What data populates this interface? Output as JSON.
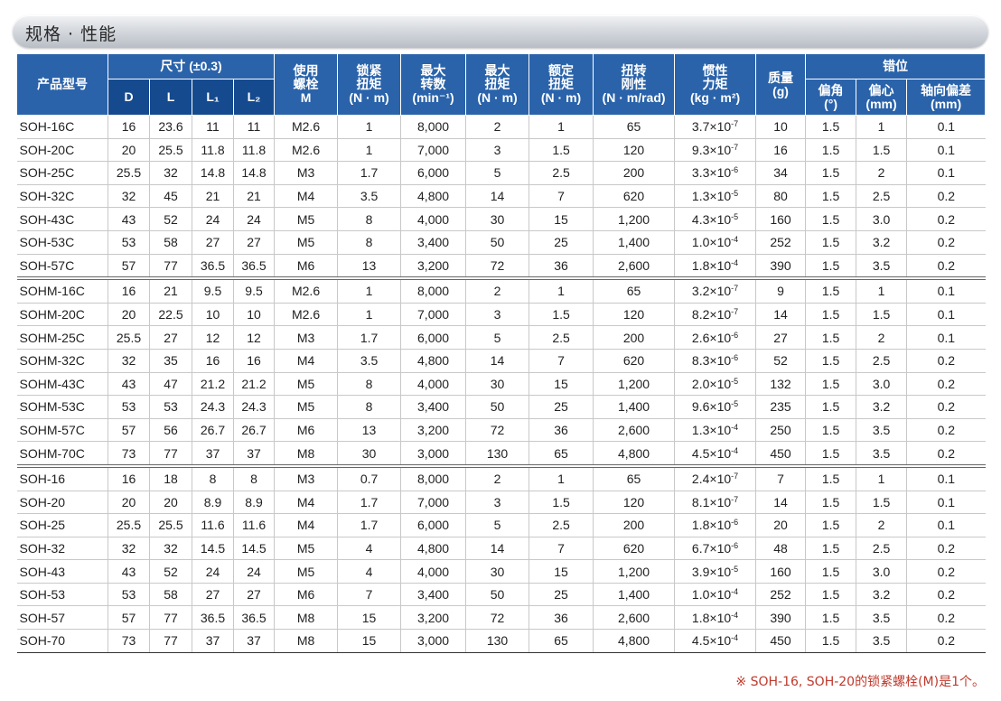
{
  "section_title": "规格 · 性能",
  "header": {
    "model": "产品型号",
    "dimension_group": "尺寸 (±0.3)",
    "dims": [
      "D",
      "L",
      "L₁",
      "L₂"
    ],
    "bolt": "使用\n螺栓\nM",
    "clamp_torque": "锁紧\n扭矩\n(N · m)",
    "max_speed": "最大\n转数\n(min⁻¹)",
    "max_torque": "最大\n扭矩\n(N · m)",
    "rated_torque": "额定\n扭矩\n(N · m)",
    "torsional_stiffness": "扭转\n刚性\n(N · m/rad)",
    "inertia": "惯性\n力矩\n(kg · m²)",
    "mass": "质量\n(g)",
    "misalignment_group": "错位",
    "angular": "偏角\n(°)",
    "parallel": "偏心\n(mm)",
    "axial": "轴向偏差\n(mm)"
  },
  "groups": [
    {
      "rows": [
        {
          "model": "SOH-16C",
          "D": "16",
          "L": "23.6",
          "L1": "11",
          "L2": "11",
          "bolt": "M2.6",
          "clamp": "1",
          "speed": "8,000",
          "max_t": "2",
          "rated_t": "1",
          "stiff": "65",
          "inertia_base": "3.7",
          "inertia_exp": "-7",
          "mass": "10",
          "angle": "1.5",
          "ecc": "1",
          "axial": "0.1"
        },
        {
          "model": "SOH-20C",
          "D": "20",
          "L": "25.5",
          "L1": "11.8",
          "L2": "11.8",
          "bolt": "M2.6",
          "clamp": "1",
          "speed": "7,000",
          "max_t": "3",
          "rated_t": "1.5",
          "stiff": "120",
          "inertia_base": "9.3",
          "inertia_exp": "-7",
          "mass": "16",
          "angle": "1.5",
          "ecc": "1.5",
          "axial": "0.1"
        },
        {
          "model": "SOH-25C",
          "D": "25.5",
          "L": "32",
          "L1": "14.8",
          "L2": "14.8",
          "bolt": "M3",
          "clamp": "1.7",
          "speed": "6,000",
          "max_t": "5",
          "rated_t": "2.5",
          "stiff": "200",
          "inertia_base": "3.3",
          "inertia_exp": "-6",
          "mass": "34",
          "angle": "1.5",
          "ecc": "2",
          "axial": "0.1"
        },
        {
          "model": "SOH-32C",
          "D": "32",
          "L": "45",
          "L1": "21",
          "L2": "21",
          "bolt": "M4",
          "clamp": "3.5",
          "speed": "4,800",
          "max_t": "14",
          "rated_t": "7",
          "stiff": "620",
          "inertia_base": "1.3",
          "inertia_exp": "-5",
          "mass": "80",
          "angle": "1.5",
          "ecc": "2.5",
          "axial": "0.2"
        },
        {
          "model": "SOH-43C",
          "D": "43",
          "L": "52",
          "L1": "24",
          "L2": "24",
          "bolt": "M5",
          "clamp": "8",
          "speed": "4,000",
          "max_t": "30",
          "rated_t": "15",
          "stiff": "1,200",
          "inertia_base": "4.3",
          "inertia_exp": "-5",
          "mass": "160",
          "angle": "1.5",
          "ecc": "3.0",
          "axial": "0.2"
        },
        {
          "model": "SOH-53C",
          "D": "53",
          "L": "58",
          "L1": "27",
          "L2": "27",
          "bolt": "M5",
          "clamp": "8",
          "speed": "3,400",
          "max_t": "50",
          "rated_t": "25",
          "stiff": "1,400",
          "inertia_base": "1.0",
          "inertia_exp": "-4",
          "mass": "252",
          "angle": "1.5",
          "ecc": "3.2",
          "axial": "0.2"
        },
        {
          "model": "SOH-57C",
          "D": "57",
          "L": "77",
          "L1": "36.5",
          "L2": "36.5",
          "bolt": "M6",
          "clamp": "13",
          "speed": "3,200",
          "max_t": "72",
          "rated_t": "36",
          "stiff": "2,600",
          "inertia_base": "1.8",
          "inertia_exp": "-4",
          "mass": "390",
          "angle": "1.5",
          "ecc": "3.5",
          "axial": "0.2"
        }
      ]
    },
    {
      "rows": [
        {
          "model": "SOHM-16C",
          "D": "16",
          "L": "21",
          "L1": "9.5",
          "L2": "9.5",
          "bolt": "M2.6",
          "clamp": "1",
          "speed": "8,000",
          "max_t": "2",
          "rated_t": "1",
          "stiff": "65",
          "inertia_base": "3.2",
          "inertia_exp": "-7",
          "mass": "9",
          "angle": "1.5",
          "ecc": "1",
          "axial": "0.1"
        },
        {
          "model": "SOHM-20C",
          "D": "20",
          "L": "22.5",
          "L1": "10",
          "L2": "10",
          "bolt": "M2.6",
          "clamp": "1",
          "speed": "7,000",
          "max_t": "3",
          "rated_t": "1.5",
          "stiff": "120",
          "inertia_base": "8.2",
          "inertia_exp": "-7",
          "mass": "14",
          "angle": "1.5",
          "ecc": "1.5",
          "axial": "0.1"
        },
        {
          "model": "SOHM-25C",
          "D": "25.5",
          "L": "27",
          "L1": "12",
          "L2": "12",
          "bolt": "M3",
          "clamp": "1.7",
          "speed": "6,000",
          "max_t": "5",
          "rated_t": "2.5",
          "stiff": "200",
          "inertia_base": "2.6",
          "inertia_exp": "-6",
          "mass": "27",
          "angle": "1.5",
          "ecc": "2",
          "axial": "0.1"
        },
        {
          "model": "SOHM-32C",
          "D": "32",
          "L": "35",
          "L1": "16",
          "L2": "16",
          "bolt": "M4",
          "clamp": "3.5",
          "speed": "4,800",
          "max_t": "14",
          "rated_t": "7",
          "stiff": "620",
          "inertia_base": "8.3",
          "inertia_exp": "-6",
          "mass": "52",
          "angle": "1.5",
          "ecc": "2.5",
          "axial": "0.2"
        },
        {
          "model": "SOHM-43C",
          "D": "43",
          "L": "47",
          "L1": "21.2",
          "L2": "21.2",
          "bolt": "M5",
          "clamp": "8",
          "speed": "4,000",
          "max_t": "30",
          "rated_t": "15",
          "stiff": "1,200",
          "inertia_base": "2.0",
          "inertia_exp": "-5",
          "mass": "132",
          "angle": "1.5",
          "ecc": "3.0",
          "axial": "0.2"
        },
        {
          "model": "SOHM-53C",
          "D": "53",
          "L": "53",
          "L1": "24.3",
          "L2": "24.3",
          "bolt": "M5",
          "clamp": "8",
          "speed": "3,400",
          "max_t": "50",
          "rated_t": "25",
          "stiff": "1,400",
          "inertia_base": "9.6",
          "inertia_exp": "-5",
          "mass": "235",
          "angle": "1.5",
          "ecc": "3.2",
          "axial": "0.2"
        },
        {
          "model": "SOHM-57C",
          "D": "57",
          "L": "56",
          "L1": "26.7",
          "L2": "26.7",
          "bolt": "M6",
          "clamp": "13",
          "speed": "3,200",
          "max_t": "72",
          "rated_t": "36",
          "stiff": "2,600",
          "inertia_base": "1.3",
          "inertia_exp": "-4",
          "mass": "250",
          "angle": "1.5",
          "ecc": "3.5",
          "axial": "0.2"
        },
        {
          "model": "SOHM-70C",
          "D": "73",
          "L": "77",
          "L1": "37",
          "L2": "37",
          "bolt": "M8",
          "clamp": "30",
          "speed": "3,000",
          "max_t": "130",
          "rated_t": "65",
          "stiff": "4,800",
          "inertia_base": "4.5",
          "inertia_exp": "-4",
          "mass": "450",
          "angle": "1.5",
          "ecc": "3.5",
          "axial": "0.2"
        }
      ]
    },
    {
      "rows": [
        {
          "model": "SOH-16",
          "D": "16",
          "L": "18",
          "L1": "8",
          "L2": "8",
          "bolt": "M3",
          "clamp": "0.7",
          "speed": "8,000",
          "max_t": "2",
          "rated_t": "1",
          "stiff": "65",
          "inertia_base": "2.4",
          "inertia_exp": "-7",
          "mass": "7",
          "angle": "1.5",
          "ecc": "1",
          "axial": "0.1"
        },
        {
          "model": "SOH-20",
          "D": "20",
          "L": "20",
          "L1": "8.9",
          "L2": "8.9",
          "bolt": "M4",
          "clamp": "1.7",
          "speed": "7,000",
          "max_t": "3",
          "rated_t": "1.5",
          "stiff": "120",
          "inertia_base": "8.1",
          "inertia_exp": "-7",
          "mass": "14",
          "angle": "1.5",
          "ecc": "1.5",
          "axial": "0.1"
        },
        {
          "model": "SOH-25",
          "D": "25.5",
          "L": "25.5",
          "L1": "11.6",
          "L2": "11.6",
          "bolt": "M4",
          "clamp": "1.7",
          "speed": "6,000",
          "max_t": "5",
          "rated_t": "2.5",
          "stiff": "200",
          "inertia_base": "1.8",
          "inertia_exp": "-6",
          "mass": "20",
          "angle": "1.5",
          "ecc": "2",
          "axial": "0.1"
        },
        {
          "model": "SOH-32",
          "D": "32",
          "L": "32",
          "L1": "14.5",
          "L2": "14.5",
          "bolt": "M5",
          "clamp": "4",
          "speed": "4,800",
          "max_t": "14",
          "rated_t": "7",
          "stiff": "620",
          "inertia_base": "6.7",
          "inertia_exp": "-6",
          "mass": "48",
          "angle": "1.5",
          "ecc": "2.5",
          "axial": "0.2"
        },
        {
          "model": "SOH-43",
          "D": "43",
          "L": "52",
          "L1": "24",
          "L2": "24",
          "bolt": "M5",
          "clamp": "4",
          "speed": "4,000",
          "max_t": "30",
          "rated_t": "15",
          "stiff": "1,200",
          "inertia_base": "3.9",
          "inertia_exp": "-5",
          "mass": "160",
          "angle": "1.5",
          "ecc": "3.0",
          "axial": "0.2"
        },
        {
          "model": "SOH-53",
          "D": "53",
          "L": "58",
          "L1": "27",
          "L2": "27",
          "bolt": "M6",
          "clamp": "7",
          "speed": "3,400",
          "max_t": "50",
          "rated_t": "25",
          "stiff": "1,400",
          "inertia_base": "1.0",
          "inertia_exp": "-4",
          "mass": "252",
          "angle": "1.5",
          "ecc": "3.2",
          "axial": "0.2"
        },
        {
          "model": "SOH-57",
          "D": "57",
          "L": "77",
          "L1": "36.5",
          "L2": "36.5",
          "bolt": "M8",
          "clamp": "15",
          "speed": "3,200",
          "max_t": "72",
          "rated_t": "36",
          "stiff": "2,600",
          "inertia_base": "1.8",
          "inertia_exp": "-4",
          "mass": "390",
          "angle": "1.5",
          "ecc": "3.5",
          "axial": "0.2"
        },
        {
          "model": "SOH-70",
          "D": "73",
          "L": "77",
          "L1": "37",
          "L2": "37",
          "bolt": "M8",
          "clamp": "15",
          "speed": "3,000",
          "max_t": "130",
          "rated_t": "65",
          "stiff": "4,800",
          "inertia_base": "4.5",
          "inertia_exp": "-4",
          "mass": "450",
          "angle": "1.5",
          "ecc": "3.5",
          "axial": "0.2"
        }
      ]
    }
  ],
  "times_sign": "×10",
  "footnote": "※ SOH-16, SOH-20的锁紧螺栓(M)是1个。"
}
